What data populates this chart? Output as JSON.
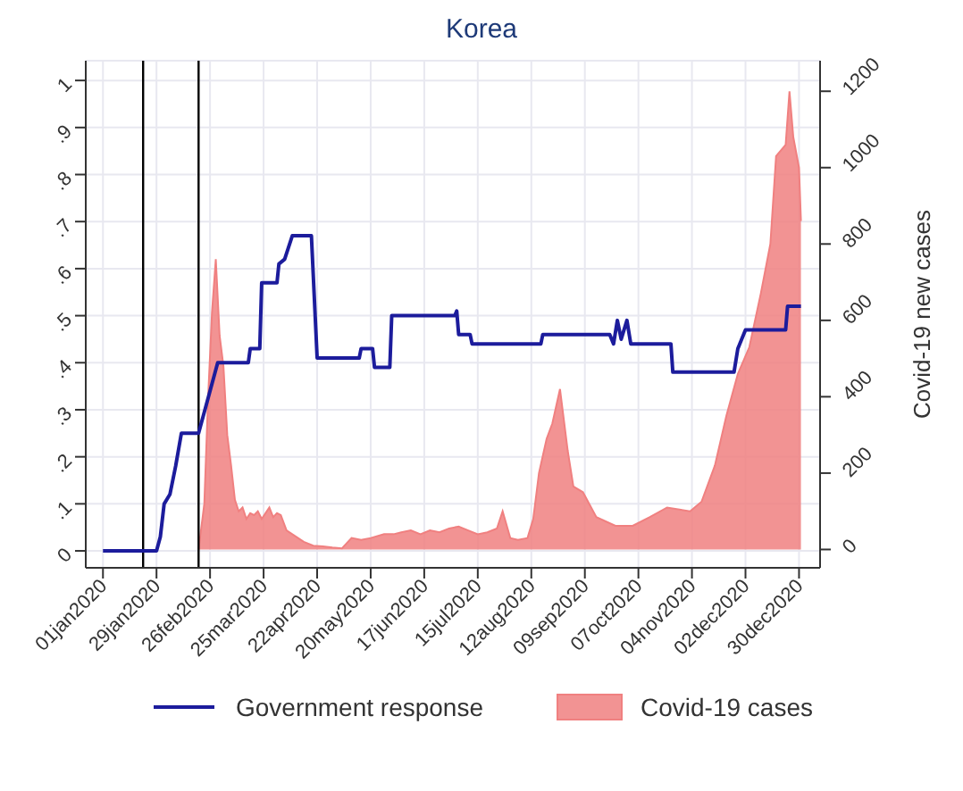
{
  "chart_data": {
    "type": "line",
    "title": "Korea",
    "y2label": "Covid-19 new cases",
    "xlim": [
      "2019-12-23",
      "2021-01-10"
    ],
    "xticks": [
      {
        "value": "2020-01-01",
        "label": "01jan2020"
      },
      {
        "value": "2020-01-29",
        "label": "29jan2020"
      },
      {
        "value": "2020-02-26",
        "label": "26feb2020"
      },
      {
        "value": "2020-03-25",
        "label": "25mar2020"
      },
      {
        "value": "2020-04-22",
        "label": "22apr2020"
      },
      {
        "value": "2020-05-20",
        "label": "20may2020"
      },
      {
        "value": "2020-06-17",
        "label": "17jun2020"
      },
      {
        "value": "2020-07-15",
        "label": "15jul2020"
      },
      {
        "value": "2020-08-12",
        "label": "12aug2020"
      },
      {
        "value": "2020-09-09",
        "label": "09sep2020"
      },
      {
        "value": "2020-10-07",
        "label": "07oct2020"
      },
      {
        "value": "2020-11-04",
        "label": "04nov2020"
      },
      {
        "value": "2020-12-02",
        "label": "02dec2020"
      },
      {
        "value": "2020-12-30",
        "label": "30dec2020"
      }
    ],
    "ylim": [
      -0.036,
      1.042
    ],
    "yticks": [
      0,
      {
        "value": 0.1,
        "label": ".1"
      },
      {
        "value": 0.2,
        "label": ".2"
      },
      {
        "value": 0.3,
        "label": ".3"
      },
      {
        "value": 0.4,
        "label": ".4"
      },
      {
        "value": 0.5,
        "label": ".5"
      },
      {
        "value": 0.6,
        "label": ".6"
      },
      {
        "value": 0.7,
        "label": ".7"
      },
      {
        "value": 0.8,
        "label": ".8"
      },
      {
        "value": 0.9,
        "label": ".9"
      },
      1
    ],
    "y2lim": [
      -48,
      1280
    ],
    "y2ticks": [
      0,
      200,
      400,
      600,
      800,
      1000,
      1200
    ],
    "grid": true,
    "legend": "bottom",
    "ref_lines": [
      {
        "axis": "x",
        "value": "2020-01-22",
        "color": "#000000"
      },
      {
        "axis": "x",
        "value": "2020-02-20",
        "color": "#000000"
      }
    ],
    "series": [
      {
        "name": "Covid-19 cases",
        "type": "area",
        "axis": "y2",
        "color": "#f08080",
        "x": [
          "2020-02-20",
          "2020-02-23",
          "2020-02-25",
          "2020-02-27",
          "2020-02-29",
          "2020-03-02",
          "2020-03-04",
          "2020-03-06",
          "2020-03-08",
          "2020-03-10",
          "2020-03-12",
          "2020-03-14",
          "2020-03-16",
          "2020-03-18",
          "2020-03-20",
          "2020-03-22",
          "2020-03-24",
          "2020-03-26",
          "2020-03-28",
          "2020-03-30",
          "2020-04-01",
          "2020-04-03",
          "2020-04-06",
          "2020-04-09",
          "2020-04-12",
          "2020-04-15",
          "2020-04-20",
          "2020-04-25",
          "2020-04-30",
          "2020-05-05",
          "2020-05-10",
          "2020-05-15",
          "2020-05-20",
          "2020-05-27",
          "2020-06-01",
          "2020-06-05",
          "2020-06-10",
          "2020-06-15",
          "2020-06-20",
          "2020-06-25",
          "2020-06-30",
          "2020-07-05",
          "2020-07-10",
          "2020-07-15",
          "2020-07-20",
          "2020-07-25",
          "2020-07-28",
          "2020-08-01",
          "2020-08-05",
          "2020-08-10",
          "2020-08-13",
          "2020-08-16",
          "2020-08-20",
          "2020-08-23",
          "2020-08-27",
          "2020-08-31",
          "2020-09-03",
          "2020-09-08",
          "2020-09-15",
          "2020-09-25",
          "2020-10-04",
          "2020-10-13",
          "2020-10-22",
          "2020-11-03",
          "2020-11-09",
          "2020-11-16",
          "2020-11-22",
          "2020-11-28",
          "2020-12-04",
          "2020-12-10",
          "2020-12-15",
          "2020-12-18",
          "2020-12-23",
          "2020-12-25",
          "2020-12-27",
          "2020-12-30",
          "2020-12-31"
        ],
        "values": [
          0,
          120,
          400,
          620,
          760,
          560,
          480,
          300,
          220,
          130,
          100,
          110,
          80,
          95,
          90,
          100,
          80,
          95,
          110,
          85,
          95,
          90,
          50,
          40,
          30,
          20,
          10,
          8,
          5,
          3,
          30,
          25,
          30,
          40,
          40,
          45,
          50,
          40,
          50,
          45,
          55,
          60,
          50,
          40,
          45,
          55,
          100,
          30,
          25,
          30,
          80,
          200,
          290,
          330,
          420,
          260,
          165,
          150,
          85,
          62,
          62,
          85,
          110,
          100,
          125,
          220,
          350,
          460,
          530,
          670,
          800,
          1030,
          1060,
          1200,
          1080,
          1000,
          860
        ]
      },
      {
        "name": "Government response",
        "axis": "y",
        "color": "#1c1c9c",
        "x": [
          "2020-01-01",
          "2020-01-29",
          "2020-01-31",
          "2020-02-02",
          "2020-02-05",
          "2020-02-08",
          "2020-02-11",
          "2020-02-20",
          "2020-03-01",
          "2020-03-17",
          "2020-03-18",
          "2020-03-23",
          "2020-03-24",
          "2020-04-01",
          "2020-04-02",
          "2020-04-05",
          "2020-04-09",
          "2020-04-19",
          "2020-04-22",
          "2020-05-14",
          "2020-05-15",
          "2020-05-21",
          "2020-05-22",
          "2020-05-30",
          "2020-05-31",
          "2020-07-03",
          "2020-07-04",
          "2020-07-05",
          "2020-07-11",
          "2020-07-12",
          "2020-08-17",
          "2020-08-18",
          "2020-09-22",
          "2020-09-24",
          "2020-09-26",
          "2020-09-28",
          "2020-10-01",
          "2020-10-03",
          "2020-10-13",
          "2020-10-24",
          "2020-10-25",
          "2020-11-26",
          "2020-11-28",
          "2020-12-02",
          "2020-12-23",
          "2020-12-24",
          "2020-12-31"
        ],
        "values": [
          0,
          0,
          0.03,
          0.1,
          0.12,
          0.18,
          0.25,
          0.25,
          0.4,
          0.4,
          0.43,
          0.43,
          0.57,
          0.57,
          0.61,
          0.62,
          0.67,
          0.67,
          0.41,
          0.41,
          0.43,
          0.43,
          0.39,
          0.39,
          0.5,
          0.5,
          0.51,
          0.46,
          0.46,
          0.44,
          0.44,
          0.46,
          0.46,
          0.44,
          0.49,
          0.45,
          0.49,
          0.44,
          0.44,
          0.44,
          0.38,
          0.38,
          0.43,
          0.47,
          0.47,
          0.52,
          0.52
        ]
      }
    ]
  }
}
